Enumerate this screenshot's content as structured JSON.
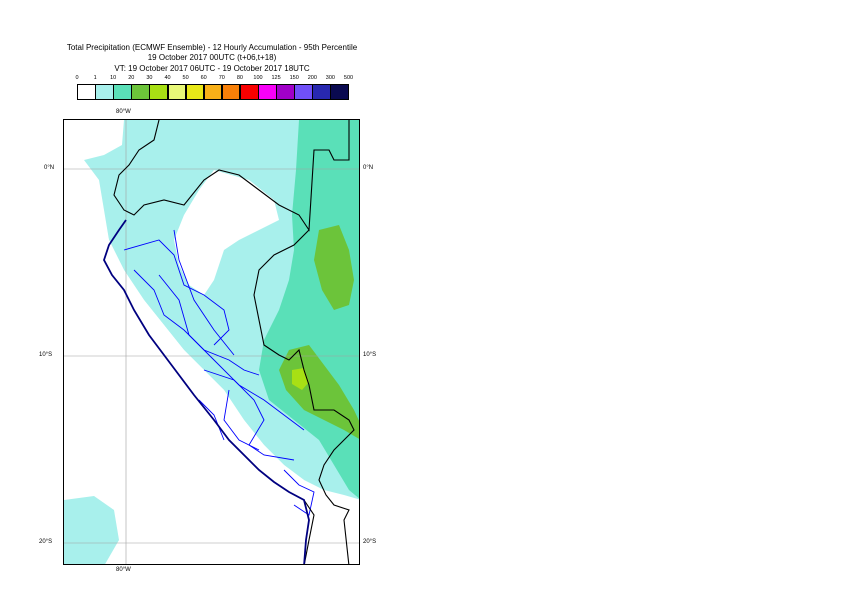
{
  "title": {
    "line1": "Total Precipitation (ECMWF Ensemble) - 12 Hourly Accumulation - 95th Percentile",
    "line2": "19 October 2017 00UTC (t+06,t+18)",
    "line3": "VT: 19 October 2017 06UTC - 19 October 2017 18UTC"
  },
  "legend": {
    "labels": [
      "0",
      "1",
      "10",
      "20",
      "30",
      "40",
      "50",
      "60",
      "70",
      "80",
      "100",
      "125",
      "150",
      "200",
      "300",
      "500"
    ],
    "colors": [
      "#ffffff",
      "#a8f0ec",
      "#5ae0b8",
      "#6cc43a",
      "#a8e014",
      "#e8f878",
      "#e8e818",
      "#f8b018",
      "#f88008",
      "#f80000",
      "#f800f8",
      "#a000c8",
      "#7050f8",
      "#2828b0",
      "#0a0a50"
    ]
  },
  "axes": {
    "lon_top": "80°W",
    "lon_bottom": "80°W",
    "lat_left": [
      "0°N",
      "10°S",
      "20°S"
    ],
    "lat_right": [
      "0°N",
      "10°S",
      "20°S"
    ]
  },
  "colors": {
    "coast": "#000080",
    "borders": "#000000",
    "regions": "#0000ff",
    "grid": "#a0a0a0"
  }
}
